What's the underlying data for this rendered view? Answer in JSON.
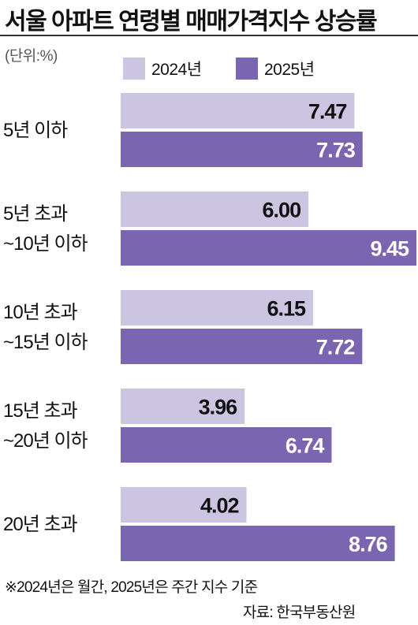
{
  "header": {
    "title": "서울 아파트 연령별 매매가격지수 상승률",
    "unit": "(단위:%)"
  },
  "colors": {
    "series_2024": "#ccc5e2",
    "series_2025": "#7a65b0",
    "value_on_dark": "#ffffff",
    "value_on_light": "#111111"
  },
  "chart_data": {
    "type": "bar",
    "orientation": "horizontal",
    "title": "서울 아파트 연령별 매매가격지수 상승률",
    "unit": "(단위:%)",
    "legend_position": "top",
    "categories": [
      [
        "5년 이하"
      ],
      [
        "5년 초과",
        "~10년 이하"
      ],
      [
        "10년 초과",
        "~15년 이하"
      ],
      [
        "15년 초과",
        "~20년 이하"
      ],
      [
        "20년 초과"
      ]
    ],
    "series": [
      {
        "name": "2024년",
        "values": [
          7.47,
          6.0,
          6.15,
          3.96,
          4.02
        ],
        "labels": [
          "7.47",
          "6.00",
          "6.15",
          "3.96",
          "4.02"
        ]
      },
      {
        "name": "2025년",
        "values": [
          7.73,
          9.45,
          7.72,
          6.74,
          8.76
        ],
        "labels": [
          "7.73",
          "9.45",
          "7.72",
          "6.74",
          "8.76"
        ]
      }
    ],
    "xlim": [
      0,
      9.45
    ],
    "grid": false
  },
  "footer": {
    "note": "※2024년은 월간, 2025년은 주간 지수 기준",
    "source": "자료: 한국부동산원"
  }
}
